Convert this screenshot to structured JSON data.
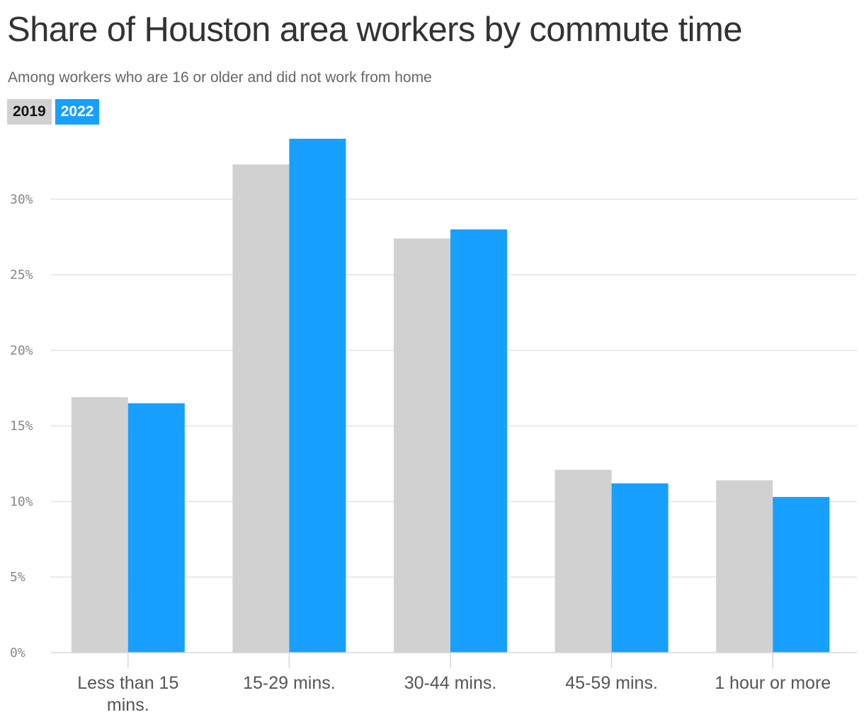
{
  "chart_data": {
    "type": "bar",
    "title": "Share of Houston area workers by commute time",
    "subtitle": "Among workers who are 16 or older and did not work from home",
    "categories": [
      "Less than 15 mins.",
      "15-29 mins.",
      "30-44 mins.",
      "45-59 mins.",
      "1 hour or more"
    ],
    "category_lines": [
      [
        "Less than 15",
        "mins."
      ],
      [
        "15-29 mins."
      ],
      [
        "30-44 mins."
      ],
      [
        "45-59 mins."
      ],
      [
        "1 hour or more"
      ]
    ],
    "series": [
      {
        "name": "2019",
        "color": "#d0d1d0",
        "values": [
          16.9,
          32.3,
          27.4,
          12.1,
          11.4
        ]
      },
      {
        "name": "2022",
        "color": "#17a0ff",
        "values": [
          16.5,
          34.0,
          28.0,
          11.2,
          10.3
        ]
      }
    ],
    "ylim": [
      0,
      34
    ],
    "yticks": [
      0,
      5,
      10,
      15,
      20,
      25,
      30
    ],
    "ytick_labels": [
      "0%",
      "5%",
      "10%",
      "15%",
      "20%",
      "25%",
      "30%"
    ],
    "grid": true,
    "legend_position": "top-left",
    "xlabel": "",
    "ylabel": ""
  }
}
